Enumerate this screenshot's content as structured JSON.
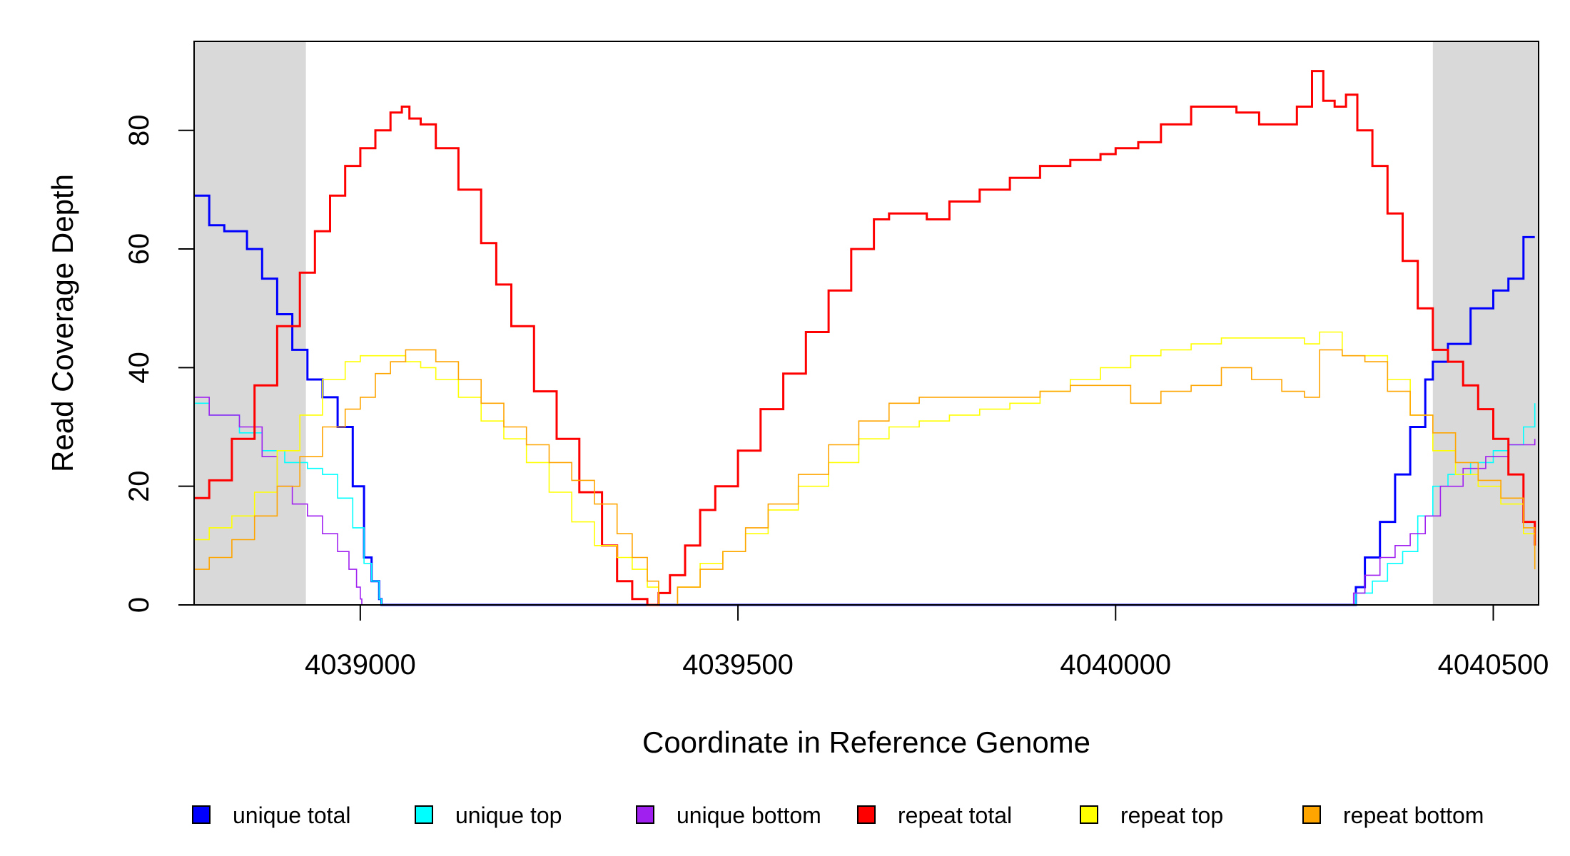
{
  "chart_data": {
    "type": "line",
    "title": "",
    "xlabel": "Coordinate in Reference Genome",
    "ylabel": "Read Coverage Depth",
    "xlim": [
      4038780,
      4040560
    ],
    "ylim": [
      0,
      95
    ],
    "xticks": [
      4039000,
      4039500,
      4040000,
      4040500
    ],
    "yticks": [
      0,
      20,
      40,
      60,
      80
    ],
    "grid": false,
    "legend_position": "bottom",
    "shaded_regions": [
      {
        "x_start": 4038780,
        "x_end": 4038928
      },
      {
        "x_start": 4040420,
        "x_end": 4040560
      }
    ],
    "series": [
      {
        "name": "unique total",
        "color": "#0000FF",
        "x": [
          4038780,
          4038800,
          4038820,
          4038850,
          4038870,
          4038890,
          4038910,
          4038930,
          4038950,
          4038970,
          4038990,
          4039005,
          4039015,
          4039025,
          4039028,
          4040315,
          4040318,
          4040330,
          4040350,
          4040370,
          4040390,
          4040410,
          4040420,
          4040440,
          4040470,
          4040500,
          4040520,
          4040540,
          4040555
        ],
        "y": [
          69,
          64,
          63,
          60,
          55,
          49,
          43,
          38,
          35,
          30,
          20,
          8,
          4,
          1,
          0,
          0,
          3,
          8,
          14,
          22,
          30,
          38,
          41,
          44,
          50,
          53,
          55,
          62,
          62
        ]
      },
      {
        "name": "unique top",
        "color": "#00FFFF",
        "x": [
          4038780,
          4038800,
          4038840,
          4038870,
          4038900,
          4038930,
          4038950,
          4038970,
          4038990,
          4039005,
          4039015,
          4039025,
          4039028,
          4040315,
          4040318,
          4040340,
          4040360,
          4040380,
          4040400,
          4040420,
          4040440,
          4040470,
          4040500,
          4040520,
          4040540,
          4040555
        ],
        "y": [
          34,
          32,
          29,
          26,
          24,
          23,
          22,
          18,
          13,
          7,
          4,
          1,
          0,
          0,
          2,
          4,
          7,
          9,
          15,
          20,
          22,
          24,
          26,
          27,
          30,
          34
        ]
      },
      {
        "name": "unique bottom",
        "color": "#A020F0",
        "x": [
          4038780,
          4038800,
          4038840,
          4038870,
          4038890,
          4038910,
          4038930,
          4038950,
          4038970,
          4038985,
          4038995,
          4039000,
          4039002,
          4040312,
          4040315,
          4040330,
          4040350,
          4040370,
          4040390,
          4040410,
          4040430,
          4040460,
          4040490,
          4040520,
          4040555
        ],
        "y": [
          35,
          32,
          30,
          25,
          20,
          17,
          15,
          12,
          9,
          6,
          3,
          1,
          0,
          0,
          2,
          5,
          8,
          10,
          12,
          15,
          20,
          23,
          25,
          27,
          28
        ]
      },
      {
        "name": "repeat total",
        "color": "#FF0000",
        "x": [
          4038780,
          4038800,
          4038830,
          4038860,
          4038890,
          4038920,
          4038940,
          4038960,
          4038980,
          4039000,
          4039020,
          4039040,
          4039055,
          4039065,
          4039080,
          4039100,
          4039130,
          4039160,
          4039180,
          4039200,
          4039230,
          4039260,
          4039290,
          4039320,
          4039340,
          4039360,
          4039380,
          4039395,
          4039410,
          4039430,
          4039450,
          4039470,
          4039500,
          4039530,
          4039560,
          4039590,
          4039620,
          4039650,
          4039680,
          4039700,
          4039730,
          4039750,
          4039780,
          4039820,
          4039860,
          4039900,
          4039940,
          4039980,
          4040000,
          4040030,
          4040060,
          4040100,
          4040130,
          4040160,
          4040190,
          4040220,
          4040240,
          4040260,
          4040275,
          4040290,
          4040305,
          4040320,
          4040340,
          4040360,
          4040380,
          4040400,
          4040420,
          4040440,
          4040460,
          4040480,
          4040500,
          4040520,
          4040540,
          4040555
        ],
        "y": [
          18,
          21,
          28,
          37,
          47,
          56,
          63,
          69,
          74,
          77,
          80,
          83,
          84,
          82,
          81,
          77,
          70,
          61,
          54,
          47,
          36,
          28,
          19,
          10,
          4,
          1,
          0,
          2,
          5,
          10,
          16,
          20,
          26,
          33,
          39,
          46,
          53,
          60,
          65,
          66,
          66,
          65,
          68,
          70,
          72,
          74,
          75,
          76,
          77,
          78,
          81,
          84,
          84,
          83,
          81,
          81,
          84,
          90,
          85,
          84,
          86,
          80,
          74,
          66,
          58,
          50,
          43,
          41,
          37,
          33,
          28,
          22,
          14,
          10
        ]
      },
      {
        "name": "repeat top",
        "color": "#FFFF00",
        "x": [
          4038780,
          4038800,
          4038830,
          4038860,
          4038890,
          4038920,
          4038950,
          4038980,
          4039000,
          4039020,
          4039040,
          4039060,
          4039080,
          4039100,
          4039130,
          4039160,
          4039190,
          4039220,
          4039250,
          4039280,
          4039310,
          4039340,
          4039360,
          4039380,
          4039395,
          4039420,
          4039450,
          4039480,
          4039510,
          4039540,
          4039580,
          4039620,
          4039660,
          4039700,
          4039740,
          4039780,
          4039820,
          4039860,
          4039900,
          4039940,
          4039980,
          4040020,
          4040060,
          4040100,
          4040140,
          4040180,
          4040220,
          4040250,
          4040270,
          4040300,
          4040330,
          4040360,
          4040390,
          4040420,
          4040450,
          4040480,
          4040510,
          4040540,
          4040555
        ],
        "y": [
          11,
          13,
          15,
          19,
          26,
          32,
          38,
          41,
          42,
          42,
          42,
          41,
          40,
          38,
          35,
          31,
          28,
          24,
          19,
          14,
          10,
          8,
          6,
          3,
          0,
          3,
          7,
          9,
          12,
          16,
          20,
          24,
          28,
          30,
          31,
          32,
          33,
          34,
          36,
          38,
          40,
          42,
          43,
          44,
          45,
          45,
          45,
          44,
          46,
          42,
          42,
          38,
          32,
          26,
          22,
          20,
          17,
          12,
          8
        ]
      },
      {
        "name": "repeat bottom",
        "color": "#FFA500",
        "x": [
          4038780,
          4038800,
          4038830,
          4038860,
          4038890,
          4038920,
          4038950,
          4038980,
          4039000,
          4039020,
          4039040,
          4039060,
          4039080,
          4039100,
          4039130,
          4039160,
          4039190,
          4039220,
          4039250,
          4039280,
          4039310,
          4039340,
          4039360,
          4039380,
          4039395,
          4039420,
          4039450,
          4039480,
          4039510,
          4039540,
          4039580,
          4039620,
          4039660,
          4039700,
          4039740,
          4039780,
          4039820,
          4039860,
          4039900,
          4039940,
          4039980,
          4040020,
          4040060,
          4040100,
          4040140,
          4040180,
          4040220,
          4040250,
          4040270,
          4040300,
          4040330,
          4040360,
          4040390,
          4040420,
          4040450,
          4040480,
          4040510,
          4040540,
          4040555
        ],
        "y": [
          6,
          8,
          11,
          15,
          20,
          25,
          30,
          33,
          35,
          39,
          41,
          43,
          43,
          41,
          38,
          34,
          30,
          27,
          24,
          21,
          17,
          12,
          8,
          4,
          0,
          3,
          6,
          9,
          13,
          17,
          22,
          27,
          31,
          34,
          35,
          35,
          35,
          35,
          36,
          37,
          37,
          34,
          36,
          37,
          40,
          38,
          36,
          35,
          43,
          42,
          41,
          36,
          32,
          29,
          24,
          21,
          18,
          13,
          6
        ]
      }
    ]
  }
}
